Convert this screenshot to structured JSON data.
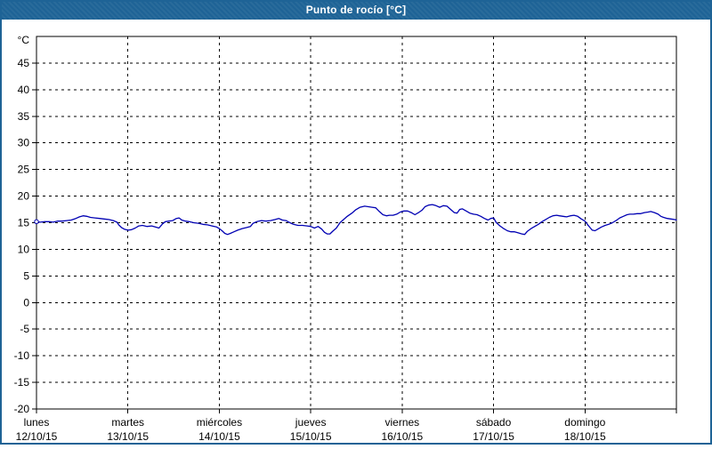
{
  "window": {
    "title": "Punto de rocío [°C]",
    "colors": {
      "chrome": "#1e6396",
      "background": "#ffffff",
      "plot_border": "#000000",
      "grid": "#000000",
      "line": "#0000b3",
      "title_text": "#ffffff",
      "label_text": "#000000"
    }
  },
  "chart_data": {
    "type": "line",
    "title": "Punto de rocío [°C]",
    "ylabel": "°C",
    "legend": "none",
    "grid": "dashed",
    "y_axis": {
      "min": -20,
      "max": 50,
      "tick_step": 5,
      "labeled_from": 45,
      "labeled_to": -20
    },
    "x_axis": {
      "span_days": 7,
      "grid": "day-boundaries",
      "day_labels": [
        {
          "day": "lunes",
          "date": "12/10/15"
        },
        {
          "day": "martes",
          "date": "13/10/15"
        },
        {
          "day": "miércoles",
          "date": "14/10/15"
        },
        {
          "day": "jueves",
          "date": "15/10/15"
        },
        {
          "day": "viernes",
          "date": "16/10/15"
        },
        {
          "day": "sábado",
          "date": "17/10/15"
        },
        {
          "day": "domingo",
          "date": "18/10/15"
        }
      ]
    },
    "series": [
      {
        "name": "Punto de rocío",
        "color": "#0000b3",
        "start_marker": true,
        "points": [
          [
            0,
            15.2
          ],
          [
            0.04,
            15.1
          ],
          [
            0.09,
            15.2
          ],
          [
            0.14,
            15.2
          ],
          [
            0.18,
            15.1
          ],
          [
            0.23,
            15.3
          ],
          [
            0.28,
            15.3
          ],
          [
            0.33,
            15.4
          ],
          [
            0.38,
            15.5
          ],
          [
            0.43,
            15.8
          ],
          [
            0.47,
            16.1
          ],
          [
            0.51,
            16.3
          ],
          [
            0.55,
            16.2
          ],
          [
            0.59,
            16.0
          ],
          [
            0.64,
            15.9
          ],
          [
            0.69,
            15.8
          ],
          [
            0.74,
            15.7
          ],
          [
            0.79,
            15.6
          ],
          [
            0.84,
            15.4
          ],
          [
            0.88,
            15.1
          ],
          [
            0.9,
            14.6
          ],
          [
            0.93,
            14.1
          ],
          [
            0.96,
            13.8
          ],
          [
            1.0,
            13.6
          ],
          [
            1.04,
            13.7
          ],
          [
            1.08,
            14.0
          ],
          [
            1.12,
            14.4
          ],
          [
            1.16,
            14.5
          ],
          [
            1.21,
            14.3
          ],
          [
            1.26,
            14.4
          ],
          [
            1.3,
            14.2
          ],
          [
            1.34,
            14.0
          ],
          [
            1.38,
            14.8
          ],
          [
            1.41,
            15.2
          ],
          [
            1.45,
            15.3
          ],
          [
            1.49,
            15.4
          ],
          [
            1.53,
            15.8
          ],
          [
            1.56,
            15.9
          ],
          [
            1.59,
            15.5
          ],
          [
            1.63,
            15.3
          ],
          [
            1.67,
            15.2
          ],
          [
            1.72,
            15.0
          ],
          [
            1.77,
            14.9
          ],
          [
            1.82,
            14.7
          ],
          [
            1.87,
            14.6
          ],
          [
            1.92,
            14.4
          ],
          [
            1.97,
            14.2
          ],
          [
            2.0,
            13.9
          ],
          [
            2.03,
            13.5
          ],
          [
            2.06,
            13.0
          ],
          [
            2.09,
            12.8
          ],
          [
            2.12,
            13.0
          ],
          [
            2.16,
            13.3
          ],
          [
            2.2,
            13.6
          ],
          [
            2.25,
            13.9
          ],
          [
            2.3,
            14.1
          ],
          [
            2.34,
            14.3
          ],
          [
            2.37,
            14.9
          ],
          [
            2.41,
            15.2
          ],
          [
            2.46,
            15.4
          ],
          [
            2.51,
            15.3
          ],
          [
            2.56,
            15.4
          ],
          [
            2.61,
            15.6
          ],
          [
            2.65,
            15.8
          ],
          [
            2.69,
            15.5
          ],
          [
            2.73,
            15.4
          ],
          [
            2.76,
            15.1
          ],
          [
            2.81,
            14.7
          ],
          [
            2.86,
            14.5
          ],
          [
            2.91,
            14.5
          ],
          [
            2.96,
            14.4
          ],
          [
            3.0,
            14.3
          ],
          [
            3.04,
            14.0
          ],
          [
            3.08,
            14.3
          ],
          [
            3.12,
            13.8
          ],
          [
            3.15,
            13.2
          ],
          [
            3.18,
            12.9
          ],
          [
            3.21,
            12.9
          ],
          [
            3.24,
            13.4
          ],
          [
            3.28,
            14.0
          ],
          [
            3.32,
            15.0
          ],
          [
            3.36,
            15.6
          ],
          [
            3.4,
            16.2
          ],
          [
            3.45,
            16.8
          ],
          [
            3.49,
            17.4
          ],
          [
            3.54,
            17.9
          ],
          [
            3.59,
            18.1
          ],
          [
            3.63,
            18.0
          ],
          [
            3.67,
            17.9
          ],
          [
            3.71,
            17.8
          ],
          [
            3.75,
            17.1
          ],
          [
            3.79,
            16.5
          ],
          [
            3.83,
            16.3
          ],
          [
            3.86,
            16.4
          ],
          [
            3.9,
            16.4
          ],
          [
            3.94,
            16.6
          ],
          [
            3.98,
            17.0
          ],
          [
            4.02,
            17.2
          ],
          [
            4.06,
            17.2
          ],
          [
            4.1,
            16.9
          ],
          [
            4.14,
            16.5
          ],
          [
            4.18,
            16.9
          ],
          [
            4.22,
            17.4
          ],
          [
            4.25,
            18.0
          ],
          [
            4.29,
            18.3
          ],
          [
            4.33,
            18.4
          ],
          [
            4.37,
            18.2
          ],
          [
            4.41,
            17.9
          ],
          [
            4.45,
            18.2
          ],
          [
            4.49,
            18.1
          ],
          [
            4.53,
            17.5
          ],
          [
            4.57,
            16.9
          ],
          [
            4.6,
            16.8
          ],
          [
            4.63,
            17.5
          ],
          [
            4.66,
            17.6
          ],
          [
            4.7,
            17.2
          ],
          [
            4.74,
            16.8
          ],
          [
            4.78,
            16.6
          ],
          [
            4.82,
            16.5
          ],
          [
            4.86,
            16.2
          ],
          [
            4.9,
            15.8
          ],
          [
            4.94,
            15.5
          ],
          [
            4.97,
            15.8
          ],
          [
            5.0,
            15.9
          ],
          [
            5.03,
            15.0
          ],
          [
            5.07,
            14.4
          ],
          [
            5.11,
            13.9
          ],
          [
            5.15,
            13.5
          ],
          [
            5.19,
            13.3
          ],
          [
            5.23,
            13.3
          ],
          [
            5.27,
            13.1
          ],
          [
            5.31,
            12.9
          ],
          [
            5.34,
            12.8
          ],
          [
            5.37,
            13.4
          ],
          [
            5.41,
            13.9
          ],
          [
            5.45,
            14.3
          ],
          [
            5.49,
            14.7
          ],
          [
            5.53,
            15.2
          ],
          [
            5.57,
            15.6
          ],
          [
            5.61,
            16.0
          ],
          [
            5.65,
            16.3
          ],
          [
            5.69,
            16.4
          ],
          [
            5.72,
            16.3
          ],
          [
            5.76,
            16.2
          ],
          [
            5.8,
            16.1
          ],
          [
            5.84,
            16.3
          ],
          [
            5.88,
            16.4
          ],
          [
            5.92,
            16.2
          ],
          [
            5.96,
            15.7
          ],
          [
            6.0,
            15.3
          ],
          [
            6.03,
            14.6
          ],
          [
            6.06,
            14.0
          ],
          [
            6.08,
            13.6
          ],
          [
            6.11,
            13.5
          ],
          [
            6.14,
            13.8
          ],
          [
            6.18,
            14.2
          ],
          [
            6.22,
            14.5
          ],
          [
            6.26,
            14.7
          ],
          [
            6.3,
            15.0
          ],
          [
            6.34,
            15.4
          ],
          [
            6.38,
            15.9
          ],
          [
            6.42,
            16.2
          ],
          [
            6.46,
            16.5
          ],
          [
            6.49,
            16.6
          ],
          [
            6.53,
            16.6
          ],
          [
            6.57,
            16.7
          ],
          [
            6.61,
            16.7
          ],
          [
            6.65,
            16.9
          ],
          [
            6.69,
            17.0
          ],
          [
            6.72,
            17.1
          ],
          [
            6.76,
            16.9
          ],
          [
            6.8,
            16.6
          ],
          [
            6.83,
            16.2
          ],
          [
            6.86,
            16.0
          ],
          [
            6.9,
            15.8
          ],
          [
            6.94,
            15.7
          ],
          [
            6.98,
            15.6
          ],
          [
            7.0,
            15.5
          ]
        ]
      }
    ]
  }
}
